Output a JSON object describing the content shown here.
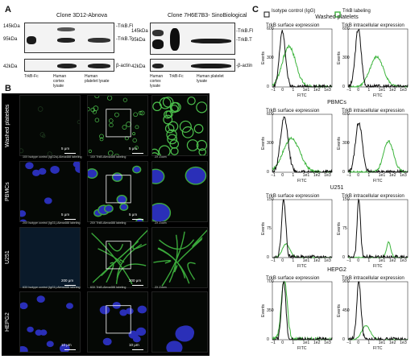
{
  "panels": {
    "a": "A",
    "b": "B",
    "c": "C"
  },
  "western": {
    "left": {
      "title": "Clone 3D12-Abnova",
      "mw_top": "145kDa",
      "mw_mid": "95kDa",
      "mw_bottom": "42kDa",
      "band_fl": "-TrkB.Fl",
      "band_t": "-TrkB.T",
      "band_actin": "β-actin",
      "lane1": "TrkB-Fc",
      "lane2": "Human cortex lysate",
      "lane3": "Human platelet lysate"
    },
    "right": {
      "title": "Clone 7H6E7B3- SinoBiological",
      "mw_top": "145kDa",
      "mw_mid": "95kDa",
      "mw_bottom": "42kDa",
      "band_fl": "-TrkB.Fl",
      "band_t": "-TrkB.T",
      "band_actin": "-β-actin",
      "lane1": "Human cortex lysate",
      "lane2": "TrkB-Fc",
      "lane3": "Human platelet lysate"
    }
  },
  "microscopy": {
    "rows": [
      {
        "label": "Washed platelets",
        "captions": [],
        "scales": [
          "5 μm",
          "5 μm"
        ]
      },
      {
        "label": "PBMCs",
        "captions": [
          "10X Isotype control (IgG2a)-Alexa488 labeling",
          "10X TrkB-Alexa488 labeling",
          "2X Zoom"
        ],
        "scales": [
          "5 μm",
          "5 μm"
        ]
      },
      {
        "label": "U251",
        "captions": [
          "20X Isotype control (IgG1)-Alexa488 labeling",
          "20X TrkB-Alexa488 labeling",
          "2X Zoom"
        ],
        "scales": [
          "200 μm",
          "200 μm"
        ]
      },
      {
        "label": "HEPG2",
        "captions": [
          "63X Isotype control (IgG1)-Alexa488 labeling",
          "63X TrkB-Alexa488 labeling",
          "2X Zoom"
        ],
        "scales": [
          "10 μm",
          "10 μm"
        ]
      }
    ]
  },
  "flow": {
    "legend": {
      "isotype": "Isotype control (IgG)",
      "trkb": "TrkB labeling"
    },
    "colors": {
      "isotype": "#111111",
      "trkb": "#3cb43c"
    },
    "rows": [
      {
        "label": "Washed platelets",
        "surface_title": "TrkB surface expression",
        "intra_title": "TrkB intracellular expression",
        "surface_ylim": 600,
        "intra_ylim": 600
      },
      {
        "label": "PBMCs",
        "surface_title": "TrkB surface expression",
        "intra_title": "TrkB intracellular expression",
        "surface_ylim": 600,
        "intra_ylim": 600
      },
      {
        "label": "U251",
        "surface_title": "TrkB surface expression",
        "intra_title": "TrkB intracellular expression",
        "surface_ylim": 150,
        "intra_ylim": 150
      },
      {
        "label": "HEPG2",
        "surface_title": "TrkB surface expression",
        "intra_title": "TrkB intracellular expression",
        "surface_ylim": 700,
        "intra_ylim": 900
      }
    ],
    "ylabel": "Events",
    "xlabel": "FITC",
    "xticks": [
      "−1",
      "0",
      "1",
      "1e1",
      "1e2",
      "1e3"
    ]
  }
}
